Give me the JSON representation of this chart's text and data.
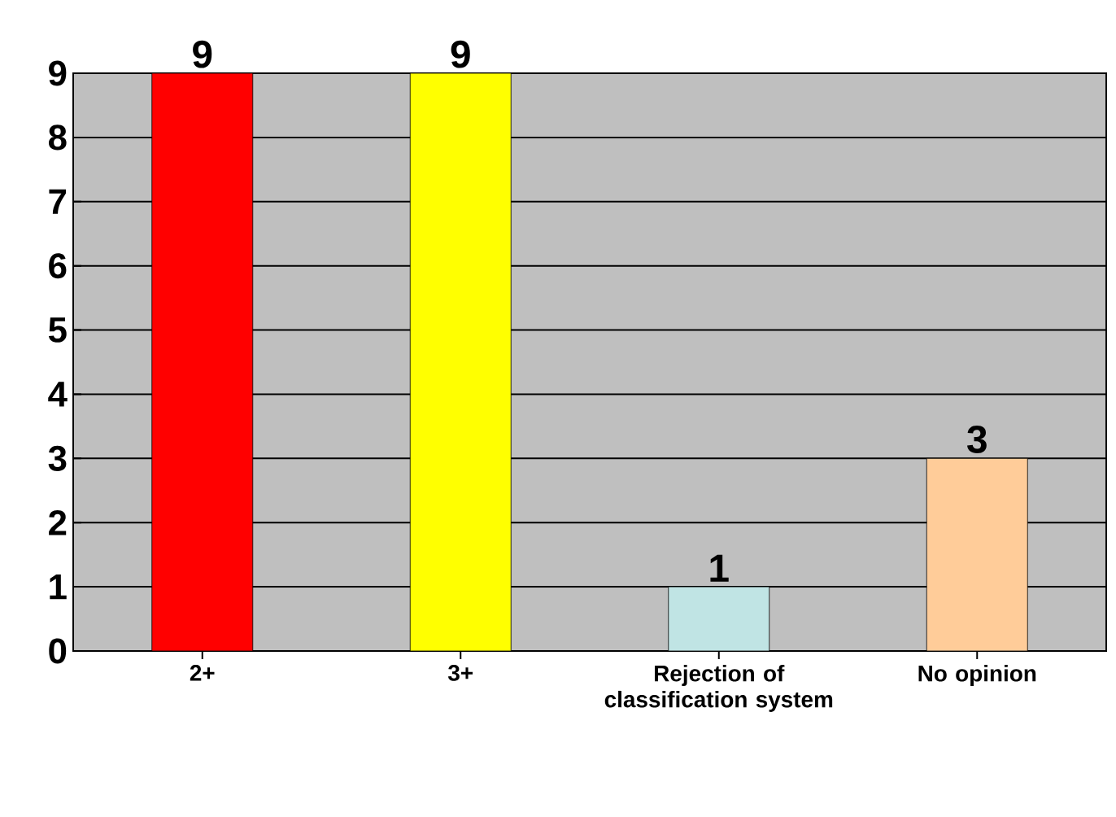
{
  "chart_data": {
    "type": "bar",
    "categories": [
      "2+",
      "3+",
      "Rejection of classification system",
      "No opinion"
    ],
    "values": [
      9,
      9,
      1,
      3
    ],
    "colors": [
      "#ff0000",
      "#ffff00",
      "#c0e4e4",
      "#ffcc99"
    ],
    "ylim": [
      0,
      9
    ],
    "yticks": [
      0,
      1,
      2,
      3,
      4,
      5,
      6,
      7,
      8,
      9
    ],
    "grid": "y",
    "data_labels": true
  }
}
